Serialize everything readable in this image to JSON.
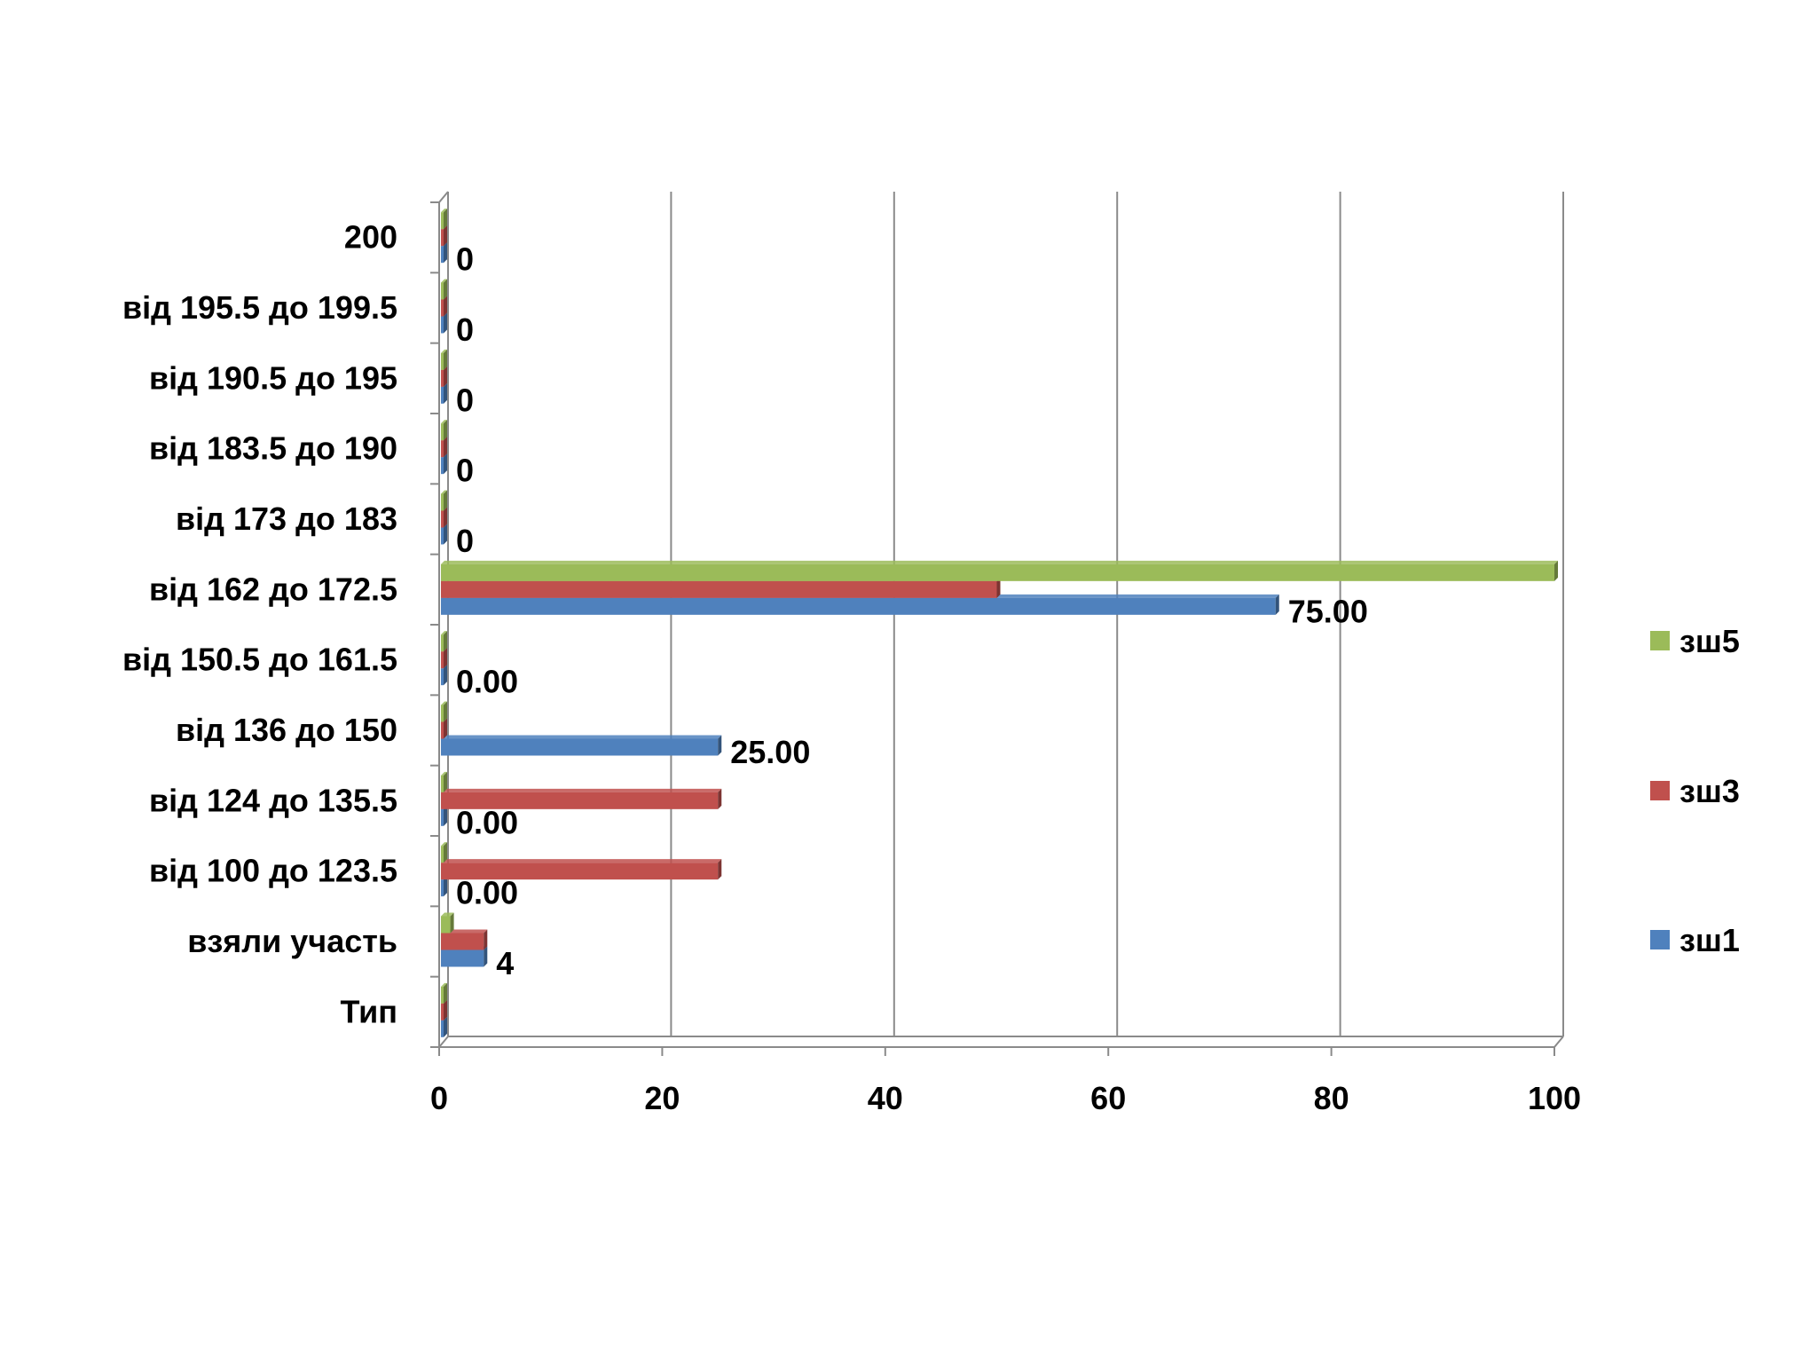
{
  "chart_data": {
    "type": "bar",
    "orientation": "horizontal",
    "categories": [
      "Тип",
      "взяли участь",
      "від 100 до 123.5",
      "від 124 до 135.5",
      "від 136 до 150",
      "від 150.5 до 161.5",
      "від 162 до 172.5",
      "від 173 до 183",
      "від 183.5 до 190",
      "від 190.5 до 195",
      "від 195.5 до 199.5",
      "200"
    ],
    "series": [
      {
        "name": "зш1",
        "color": "#4f81bd",
        "values": [
          0,
          4,
          0,
          0,
          25,
          0,
          75,
          0,
          0,
          0,
          0,
          0
        ]
      },
      {
        "name": "зш3",
        "color": "#c0504d",
        "values": [
          0,
          4,
          25,
          25,
          0,
          0,
          50,
          0,
          0,
          0,
          0,
          0
        ]
      },
      {
        "name": "зш5",
        "color": "#9bbb59",
        "values": [
          0,
          1,
          0,
          0,
          0,
          0,
          100,
          0,
          0,
          0,
          0,
          0
        ]
      }
    ],
    "data_labels": [
      "",
      "4",
      "0.00",
      "0.00",
      "25.00",
      "0.00",
      "75.00",
      "0",
      "0",
      "0",
      "0",
      "0"
    ],
    "x_ticks": [
      "0",
      "20",
      "40",
      "60",
      "80",
      "100"
    ],
    "xlim": [
      0,
      100
    ],
    "grid": true,
    "legend_position": "right",
    "legend_order": [
      "зш5",
      "зш3",
      "зш1"
    ],
    "title": "",
    "xlabel": "",
    "ylabel": ""
  }
}
